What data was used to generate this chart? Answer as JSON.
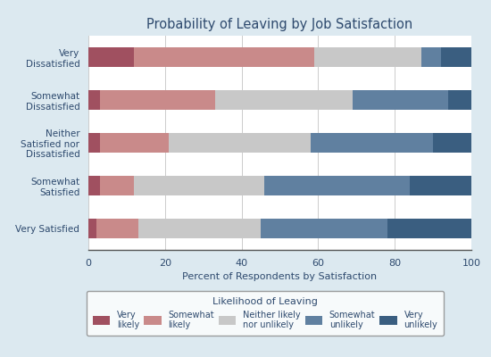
{
  "title": "Probability of Leaving by Job Satisfaction",
  "xlabel": "Percent of Respondents by Satisfaction",
  "categories": [
    "Very\nDissatisfied",
    "Somewhat\nDissatisfied",
    "Neither\nSatisfied nor\nDissatisfied",
    "Somewhat\nSatisfied",
    "Very Satisfied"
  ],
  "legend_title": "Likelihood of Leaving",
  "legend_labels": [
    "Very\nlikely",
    "Somewhat\nlikely",
    "Neither likely\nnor unlikely",
    "Somewhat\nunlikely",
    "Very\nunlikely"
  ],
  "colors": [
    "#a05060",
    "#c98a8a",
    "#c8c8c8",
    "#6080a0",
    "#3a5e80"
  ],
  "data": [
    [
      12,
      47,
      28,
      5,
      8
    ],
    [
      3,
      30,
      36,
      25,
      6
    ],
    [
      3,
      18,
      37,
      32,
      10
    ],
    [
      3,
      9,
      34,
      38,
      16
    ],
    [
      2,
      11,
      32,
      33,
      22
    ]
  ],
  "xlim": [
    0,
    100
  ],
  "background_color": "#dce9f0",
  "plot_bg_color": "#ffffff",
  "title_color": "#2e4a6e",
  "axis_label_color": "#2e4a6e",
  "tick_label_color": "#2e4a6e",
  "legend_title_color": "#2e4a6e",
  "legend_label_color": "#2e4a6e",
  "bar_height": 0.45
}
